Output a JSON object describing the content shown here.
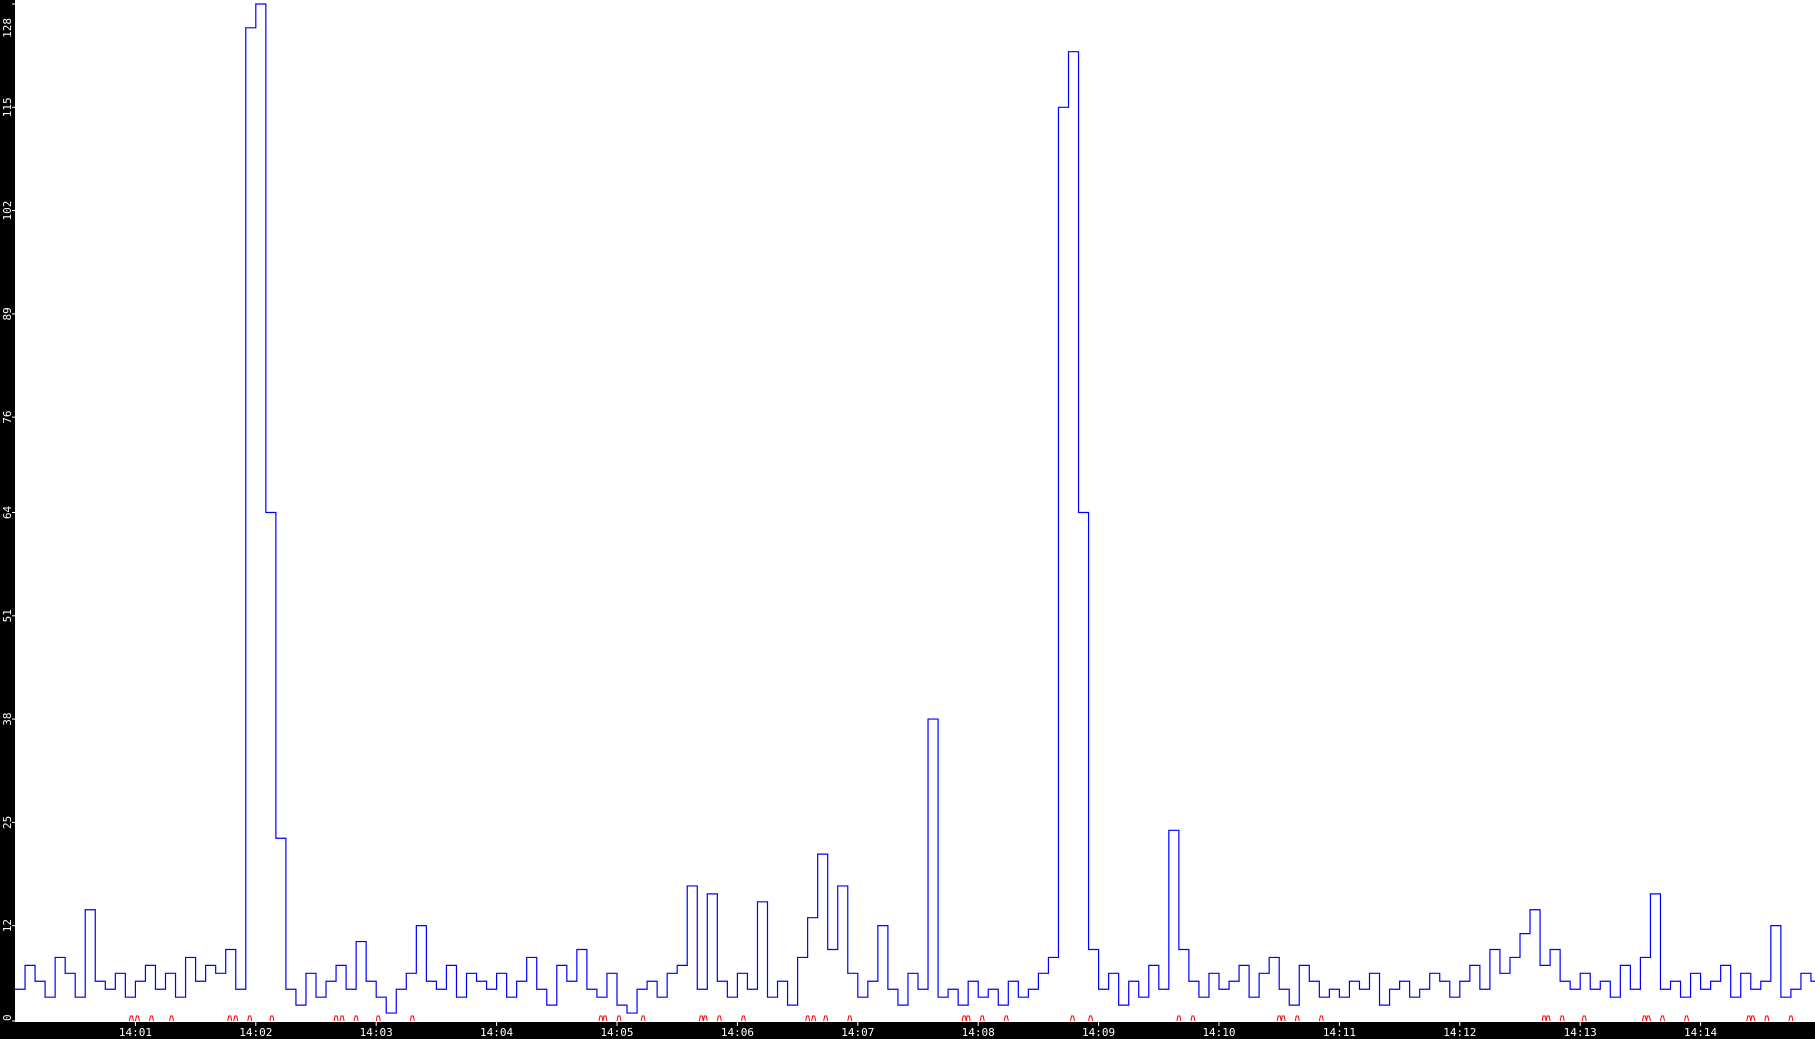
{
  "chart_data": {
    "type": "line",
    "title": "",
    "xlabel": "",
    "ylabel": "",
    "ylim": [
      0,
      128
    ],
    "xlim": [
      "14:00:00",
      "14:14:57"
    ],
    "grid": false,
    "legend": "none",
    "y_ticks": [
      "0",
      "12",
      "25",
      "38",
      "51",
      "64",
      "76",
      "89",
      "102",
      "115",
      "128"
    ],
    "x_ticks": [
      "14:01",
      "14:02",
      "14:03",
      "14:04",
      "14:05",
      "14:06",
      "14:07",
      "14:08",
      "14:09",
      "14:10",
      "14:11",
      "14:12",
      "14:13",
      "14:14"
    ],
    "colors": {
      "series": "#0000ff",
      "events": "#ff0000",
      "axis_background": "#000000",
      "plot_background": "#ffffff",
      "axis_text": "#ffffff"
    },
    "series": [
      {
        "values": [
          4,
          7,
          5,
          3,
          8,
          6,
          3,
          14,
          5,
          4,
          6,
          3,
          5,
          7,
          4,
          6,
          3,
          8,
          5,
          7,
          6,
          9,
          4,
          125,
          128,
          64,
          23,
          4,
          2,
          6,
          3,
          5,
          7,
          4,
          10,
          5,
          3,
          1,
          4,
          6,
          12,
          5,
          4,
          7,
          3,
          6,
          5,
          4,
          6,
          3,
          5,
          8,
          4,
          2,
          7,
          5,
          9,
          4,
          3,
          6,
          2,
          1,
          4,
          5,
          3,
          6,
          7,
          17,
          4,
          16,
          5,
          3,
          6,
          4,
          15,
          3,
          5,
          2,
          8,
          13,
          21,
          9,
          17,
          6,
          3,
          5,
          12,
          4,
          2,
          6,
          4,
          38,
          3,
          4,
          2,
          5,
          3,
          4,
          2,
          5,
          3,
          4,
          6,
          8,
          115,
          122,
          64,
          9,
          4,
          6,
          2,
          5,
          3,
          7,
          4,
          24,
          9,
          5,
          3,
          6,
          4,
          5,
          7,
          3,
          6,
          8,
          4,
          2,
          7,
          5,
          3,
          4,
          3,
          5,
          4,
          6,
          2,
          4,
          5,
          3,
          4,
          6,
          5,
          3,
          5,
          7,
          4,
          9,
          6,
          8,
          11,
          14,
          7,
          9,
          5,
          4,
          6,
          4,
          5,
          3,
          7,
          4,
          8,
          16,
          4,
          5,
          3,
          6,
          4,
          5,
          7,
          3,
          6,
          4,
          5,
          12,
          3,
          4,
          6,
          5
        ]
      }
    ],
    "x": "every 5 seconds from 14:00:00 to 14:14:55",
    "events": [
      "14:00:58",
      "14:01:01",
      "14:01:08",
      "14:01:18",
      "14:01:47",
      "14:01:50",
      "14:01:57",
      "14:02:08",
      "14:02:40",
      "14:02:43",
      "14:02:50",
      "14:03:01",
      "14:03:18",
      "14:04:52",
      "14:04:54",
      "14:05:01",
      "14:05:13",
      "14:05:42",
      "14:05:44",
      "14:05:51",
      "14:06:03",
      "14:06:35",
      "14:06:38",
      "14:06:44",
      "14:06:56",
      "14:07:53",
      "14:07:55",
      "14:08:02",
      "14:08:14",
      "14:08:47",
      "14:08:56",
      "14:09:40",
      "14:09:47",
      "14:10:30",
      "14:10:32",
      "14:10:39",
      "14:10:51",
      "14:12:42",
      "14:12:44",
      "14:12:51",
      "14:13:02",
      "14:13:32",
      "14:13:34",
      "14:13:41",
      "14:13:53",
      "14:14:24",
      "14:14:26",
      "14:14:33",
      "14:14:45"
    ]
  }
}
